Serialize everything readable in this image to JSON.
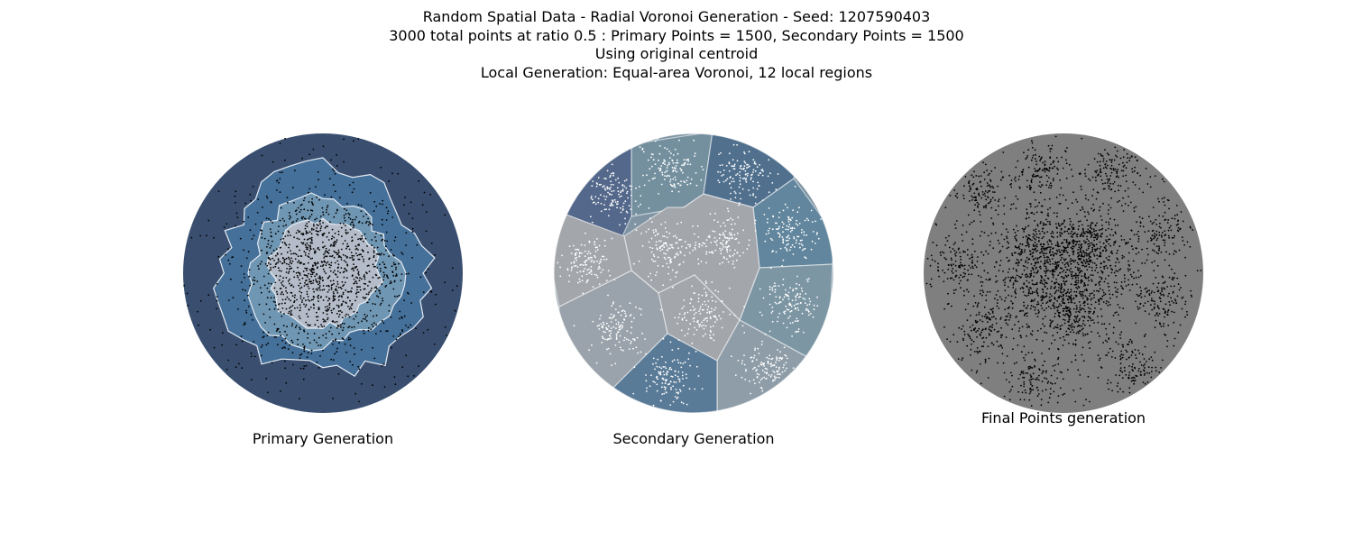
{
  "title_lines": [
    "Random Spatial Data - Radial Voronoi Generation - Seed: 1207590403",
    "3000 total points at ratio 0.5 : Primary Points = 1500, Secondary Points = 1500",
    "Using original centroid",
    "Local Generation: Equal-area Voronoi, 12 local regions"
  ],
  "seed": 1207590403,
  "total_points": 3000,
  "ratio": 0.5,
  "primary_points": 1500,
  "secondary_points": 1500,
  "local_regions": 12,
  "panels": [
    {
      "id": "primary",
      "label": "Primary Generation"
    },
    {
      "id": "secondary",
      "label": "Secondary Generation"
    },
    {
      "id": "final",
      "label": "Final Points generation"
    }
  ],
  "colors": {
    "primary_rings": [
      "#3a4f70",
      "#44709a",
      "#6f96b3",
      "#b4bcc9"
    ],
    "primary_points": "#000000",
    "secondary_regions": [
      "#74909f",
      "#53688a",
      "#50708e",
      "#62869d",
      "#7d96a4",
      "#a3a6ab",
      "#a3a6ab",
      "#8e9da8",
      "#9aa3ab",
      "#a3a6ab",
      "#5a7b97",
      "#4f5f79"
    ],
    "secondary_points": "#ffffff",
    "final_background": "#7f7f7f",
    "final_points": "#000000"
  }
}
